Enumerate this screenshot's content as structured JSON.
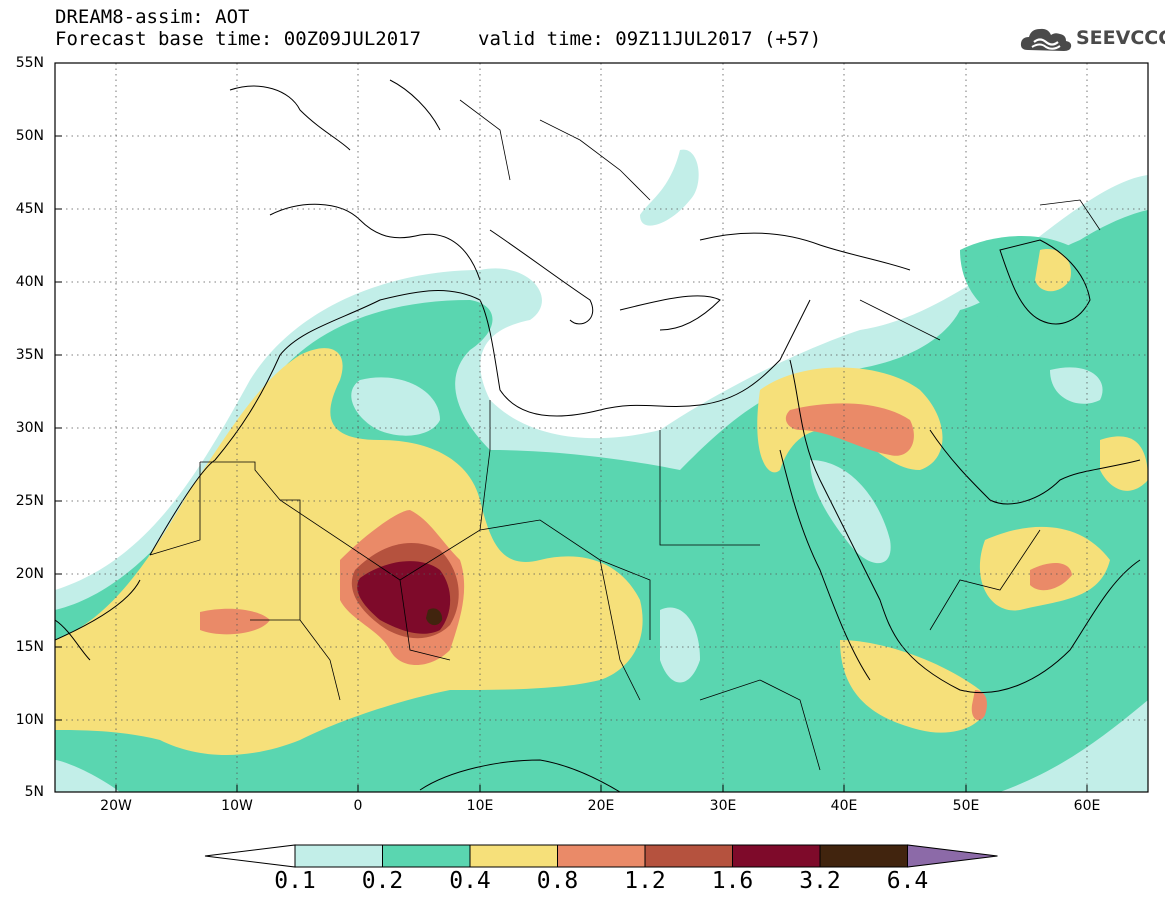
{
  "header": {
    "model_line": "DREAM8-assim: AOT",
    "base_time_line": "Forecast base time: 00Z09JUL2017",
    "valid_time_line": "valid time: 09Z11JUL2017 (+57)"
  },
  "logo": {
    "text": "SEEVCCC",
    "icon": "cloud-icon",
    "color": "#4a4a4a"
  },
  "map": {
    "lat_labels": [
      "55N",
      "50N",
      "45N",
      "40N",
      "35N",
      "30N",
      "25N",
      "20N",
      "15N",
      "10N",
      "5N"
    ],
    "lon_labels": [
      "20W",
      "10W",
      "0",
      "10E",
      "20E",
      "30E",
      "40E",
      "50E",
      "60E"
    ],
    "lat_range": [
      5,
      55
    ],
    "lon_range": [
      -25,
      65
    ],
    "field": "aerosol optical thickness",
    "gridlines": "dotted"
  },
  "colorbar": {
    "levels": [
      "0.1",
      "0.2",
      "0.4",
      "0.8",
      "1.2",
      "1.6",
      "3.2",
      "6.4"
    ],
    "colors": [
      "#c2eee8",
      "#5ad6b0",
      "#f6e07a",
      "#ea8a68",
      "#b5523e",
      "#7e0a2a",
      "#41240e"
    ],
    "under_color": "#ffffff",
    "over_color": "#8c6aa8"
  }
}
